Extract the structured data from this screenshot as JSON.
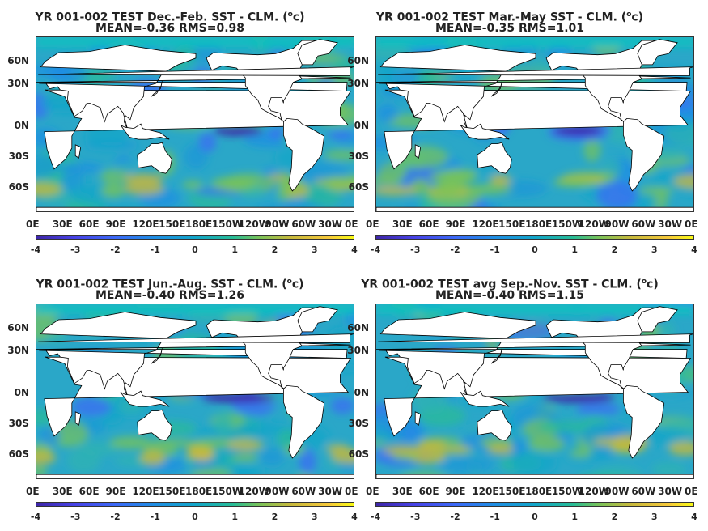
{
  "panels": [
    {
      "title_pre": "YR 001-002 TEST  Dec.-Feb. SST - CLM. (",
      "title_sup": "o",
      "title_post": "c)",
      "stats": "MEAN=-0.36   RMS=0.98"
    },
    {
      "title_pre": "YR 001-002 TEST Mar.-May SST - CLM. (",
      "title_sup": "o",
      "title_post": "c)",
      "stats": "MEAN=-0.35   RMS=1.01"
    },
    {
      "title_pre": "YR 001-002 TEST Jun.-Aug. SST - CLM. (",
      "title_sup": "o",
      "title_post": "c)",
      "stats": "MEAN=-0.40   RMS=1.26"
    },
    {
      "title_pre": "YR 001-002 TEST avg Sep.-Nov. SST - CLM. (",
      "title_sup": "o",
      "title_post": "c)",
      "stats": "MEAN=-0.40   RMS=1.15"
    }
  ],
  "lat_labels": [
    "60N",
    "30N",
    "0N",
    "30S",
    "60S"
  ],
  "lon_labels": [
    "0E",
    "30E",
    "60E",
    "90E",
    "120E",
    "150E",
    "180E",
    "150W",
    "120W",
    "90W",
    "60W",
    "30W",
    "0E"
  ],
  "colorbar_ticks": [
    "-4",
    "-3",
    "-2",
    "-1",
    "0",
    "1",
    "2",
    "3",
    "4"
  ],
  "colors": {
    "ocean_base": "#2ab0c0",
    "cold": "#3e26a8",
    "warm": "#f6c83a",
    "land": "#ffffff"
  }
}
